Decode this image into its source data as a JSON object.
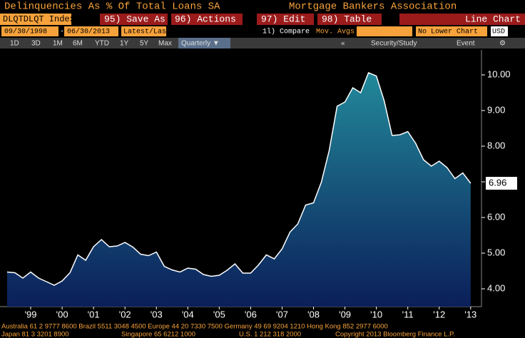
{
  "header": {
    "title": "Delinquencies As % Of Total Loans SA",
    "source": "Mortgage Bankers Association"
  },
  "toolbar": {
    "ticker": "DLQTDLQT Index",
    "buttons": [
      "95) Save As",
      "96) Actions",
      "97) Edit",
      "98) Table"
    ],
    "chart_type": "Line Chart",
    "start_date": "09/30/1998",
    "date_sep": "-",
    "end_date": "06/30/2013",
    "price_type": "Latest/Last",
    "compare": "1l) Compare",
    "mov_avgs": "Mov. Avgs",
    "lower_chart": "No Lower Chart",
    "currency": "USD",
    "periods": [
      "1D",
      "3D",
      "1M",
      "6M",
      "YTD",
      "1Y",
      "5Y",
      "Max"
    ],
    "frequency": "Quarterly ▼",
    "collapse": "«",
    "study": "Security/Study",
    "event": "Event",
    "settings": "⚙"
  },
  "footer": {
    "line1": "Australia 61 2 9777 8600 Brazil 5511 3048 4500 Europe 44 20 7330 7500 Germany 49 69 9204 1210 Hong Kong 852 2977 6000",
    "line2_items": [
      "Japan 81 3 3201 8900",
      "Singapore 65 6212 1000",
      "U.S. 1 212 318 2000",
      "Copyright 2013 Bloomberg Finance L.P."
    ]
  },
  "chart_data": {
    "type": "area",
    "x": [
      1998.75,
      1999,
      1999.25,
      1999.5,
      1999.75,
      2000,
      2000.25,
      2000.5,
      2000.75,
      2001,
      2001.25,
      2001.5,
      2001.75,
      2002,
      2002.25,
      2002.5,
      2002.75,
      2003,
      2003.25,
      2003.5,
      2003.75,
      2004,
      2004.25,
      2004.5,
      2004.75,
      2005,
      2005.25,
      2005.5,
      2005.75,
      2006,
      2006.25,
      2006.5,
      2006.75,
      2007,
      2007.25,
      2007.5,
      2007.75,
      2008,
      2008.25,
      2008.5,
      2008.75,
      2009,
      2009.25,
      2009.5,
      2009.75,
      2010,
      2010.25,
      2010.5,
      2010.75,
      2011,
      2011.25,
      2011.5,
      2011.75,
      2012,
      2012.25,
      2012.5,
      2012.75,
      2013,
      2013.25,
      2013.5
    ],
    "series": [
      {
        "color": "#ffffff",
        "values": [
          4.47,
          4.45,
          4.3,
          4.47,
          4.3,
          4.2,
          4.1,
          4.22,
          4.45,
          4.95,
          4.8,
          5.18,
          5.38,
          5.18,
          5.2,
          5.3,
          5.17,
          4.97,
          4.93,
          5.03,
          4.63,
          4.53,
          4.47,
          4.58,
          4.55,
          4.4,
          4.35,
          4.38,
          4.52,
          4.7,
          4.44,
          4.44,
          4.67,
          4.95,
          4.84,
          5.12,
          5.59,
          5.82,
          6.35,
          6.41,
          6.99,
          7.88,
          9.12,
          9.24,
          9.64,
          9.5,
          10.06,
          9.97,
          9.27,
          8.3,
          8.32,
          8.41,
          8.08,
          7.62,
          7.44,
          7.58,
          7.4,
          7.09,
          7.25,
          6.96
        ]
      }
    ],
    "xlim": [
      1998.75,
      2013.8
    ],
    "xticks": [
      {
        "value": 1999.5,
        "label": "'99"
      },
      {
        "value": 2000.5,
        "label": "'00"
      },
      {
        "value": 2001.5,
        "label": "'01"
      },
      {
        "value": 2002.5,
        "label": "'02"
      },
      {
        "value": 2003.5,
        "label": "'03"
      },
      {
        "value": 2004.5,
        "label": "'04"
      },
      {
        "value": 2005.5,
        "label": "'05"
      },
      {
        "value": 2006.5,
        "label": "'06"
      },
      {
        "value": 2007.5,
        "label": "'07"
      },
      {
        "value": 2008.5,
        "label": "'08"
      },
      {
        "value": 2009.5,
        "label": "'09"
      },
      {
        "value": 2010.5,
        "label": "'10"
      },
      {
        "value": 2011.5,
        "label": "'11"
      },
      {
        "value": 2012.5,
        "label": "'12"
      },
      {
        "value": 2013.5,
        "label": "'13"
      }
    ],
    "ylim": [
      3.5,
      10.7
    ],
    "yticks": [
      {
        "value": 4,
        "label": "4.00"
      },
      {
        "value": 5,
        "label": "5.00"
      },
      {
        "value": 6,
        "label": "6.00"
      },
      {
        "value": 7,
        "label": "7.00"
      },
      {
        "value": 8,
        "label": "8.00"
      },
      {
        "value": 9,
        "label": "9.00"
      },
      {
        "value": 10,
        "label": "10.00"
      }
    ],
    "grid": false,
    "area_top_color": "#22899a",
    "area_bottom_color": "#0b1f5a"
  }
}
